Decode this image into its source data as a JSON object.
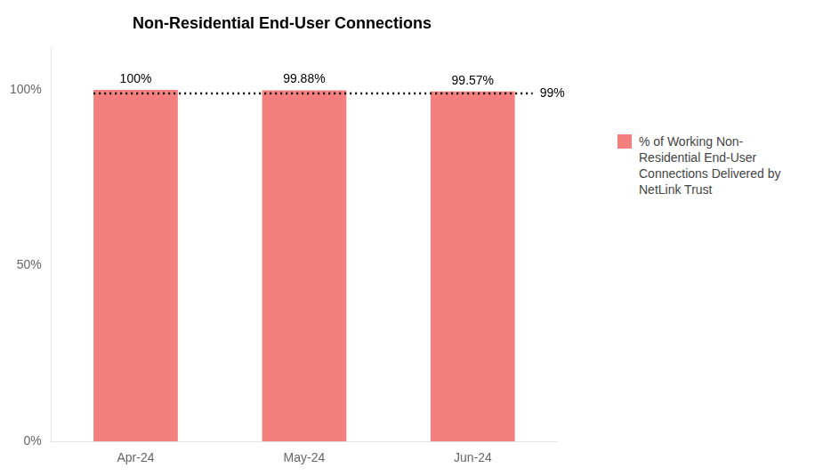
{
  "chart_data": {
    "type": "bar",
    "title": "Non-Residential End-User Connections",
    "categories": [
      "Apr-24",
      "May-24",
      "Jun-24"
    ],
    "series": [
      {
        "name": "% of Working Non-\nResidential End-User\nConnections Delivered by\nNetLink Trust",
        "color": "#F47F7F",
        "values": [
          100.0,
          99.88,
          99.57
        ],
        "value_labels": [
          "100%",
          "99.88%",
          "99.57%"
        ]
      }
    ],
    "data_labels": true,
    "ylim": [
      0,
      112
    ],
    "yticks": [
      {
        "value": 0,
        "label": "0%"
      },
      {
        "value": 50,
        "label": "50%"
      },
      {
        "value": 100,
        "label": "100%"
      }
    ],
    "annotations": [
      {
        "y": 99,
        "text": "99%",
        "color": "#000000",
        "line_style": "dotted"
      }
    ],
    "grid": false,
    "legend": "right"
  }
}
